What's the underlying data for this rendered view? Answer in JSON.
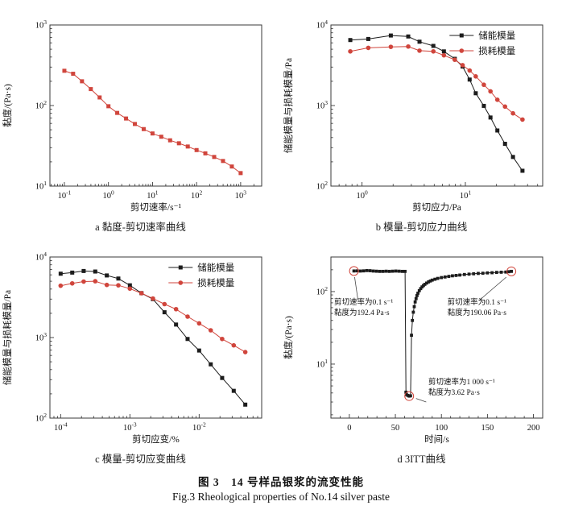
{
  "figure_caption": {
    "cn": "图 3　14 号样品银浆的流变性能",
    "en": "Fig.3 Rheological properties of No.14 silver paste"
  },
  "colors": {
    "red": "#d0453c",
    "black": "#1c1c1c",
    "axis": "#3a3a3a"
  },
  "chart_data": [
    {
      "id": "a",
      "type": "line",
      "caption": "a 黏度-剪切速率曲线",
      "xlabel": "剪切速率/s⁻¹",
      "ylabel": "黏度/(Pa·s)",
      "xscale": "log",
      "yscale": "log",
      "xlim": [
        0.047,
        3000
      ],
      "ylim": [
        10,
        1000
      ],
      "xticks": [
        0.1,
        1,
        10,
        100,
        1000
      ],
      "yticks": [
        10,
        100,
        1000
      ],
      "grid": false,
      "series": [
        {
          "name": "",
          "color": "red",
          "marker": "square",
          "x": [
            0.1,
            0.158,
            0.251,
            0.398,
            0.631,
            1,
            1.58,
            2.51,
            3.98,
            6.31,
            10,
            15.8,
            25.1,
            39.8,
            63.1,
            100,
            158,
            251,
            398,
            631,
            1000
          ],
          "y": [
            270,
            248,
            200,
            160,
            126,
            98,
            81,
            69,
            59,
            51,
            45,
            41,
            37,
            34,
            31,
            28,
            25.5,
            23,
            20.5,
            17.5,
            14.5
          ]
        }
      ]
    },
    {
      "id": "b",
      "type": "line",
      "caption": "b 模量-剪切应力曲线",
      "xlabel": "剪切应力/Pa",
      "ylabel": "储能模量与损耗模量/Pa",
      "xscale": "log",
      "yscale": "log",
      "xlim": [
        0.5,
        56
      ],
      "ylim": [
        100,
        10000
      ],
      "xticks": [
        1,
        10
      ],
      "yticks": [
        100,
        1000,
        10000
      ],
      "grid": false,
      "legend_position": "top-right",
      "series": [
        {
          "name": "储能模量",
          "color": "black",
          "marker": "square",
          "x": [
            0.77,
            1.15,
            1.9,
            2.8,
            3.6,
            4.9,
            6.2,
            7.9,
            9.4,
            11,
            12.6,
            15.1,
            17.5,
            20.4,
            24.2,
            28.9,
            35.7
          ],
          "y": [
            6500,
            6700,
            7400,
            7200,
            6200,
            5500,
            4700,
            3800,
            3050,
            2100,
            1420,
            990,
            710,
            490,
            335,
            230,
            155
          ]
        },
        {
          "name": "损耗模量",
          "color": "red",
          "marker": "circle",
          "x": [
            0.77,
            1.15,
            1.9,
            2.8,
            3.6,
            4.9,
            6.2,
            7.9,
            9.4,
            11,
            12.6,
            15.1,
            17.5,
            20.4,
            24.2,
            28.9,
            35.7
          ],
          "y": [
            4700,
            5200,
            5350,
            5400,
            4800,
            4700,
            4200,
            3700,
            3170,
            2720,
            2300,
            1810,
            1500,
            1180,
            970,
            800,
            670
          ]
        }
      ]
    },
    {
      "id": "c",
      "type": "line",
      "caption": "c 模量-剪切应变曲线",
      "xlabel": "剪切应变/%",
      "ylabel": "储能模量与损耗模量/Pa",
      "xscale": "log",
      "yscale": "log",
      "xlim": [
        7e-05,
        0.08
      ],
      "ylim": [
        100,
        10000
      ],
      "xticks": [
        0.0001,
        0.001,
        0.01
      ],
      "yticks": [
        100,
        1000,
        10000
      ],
      "grid": false,
      "legend_position": "top-right",
      "series": [
        {
          "name": "储能模量",
          "color": "black",
          "marker": "square",
          "x": [
            0.0001,
            0.000147,
            0.000215,
            0.000316,
            0.000464,
            0.000681,
            0.001,
            0.00147,
            0.00215,
            0.00316,
            0.00464,
            0.00681,
            0.01,
            0.0147,
            0.0215,
            0.0316,
            0.0464
          ],
          "y": [
            6200,
            6400,
            6700,
            6600,
            5900,
            5400,
            4450,
            3560,
            3000,
            2060,
            1450,
            960,
            690,
            465,
            315,
            218,
            147
          ]
        },
        {
          "name": "损耗模量",
          "color": "red",
          "marker": "circle",
          "x": [
            0.0001,
            0.000147,
            0.000215,
            0.000316,
            0.000464,
            0.000681,
            0.001,
            0.00147,
            0.00215,
            0.00316,
            0.00464,
            0.00681,
            0.01,
            0.0147,
            0.0215,
            0.0316,
            0.0464
          ],
          "y": [
            4400,
            4700,
            4950,
            5000,
            4500,
            4450,
            4050,
            3550,
            3050,
            2600,
            2250,
            1820,
            1500,
            1230,
            960,
            800,
            660
          ]
        }
      ]
    },
    {
      "id": "d",
      "type": "line",
      "caption": "d 3ITT曲线",
      "xlabel": "时间/s",
      "ylabel": "黏度/(Pa·s)",
      "xscale": "linear",
      "yscale": "log",
      "xlim": [
        -20,
        210
      ],
      "ylim": [
        1.8,
        300
      ],
      "xticks": [
        0,
        50,
        100,
        150,
        200
      ],
      "xminor": 10,
      "yticks": [
        10,
        100
      ],
      "grid": false,
      "series": [
        {
          "name": "",
          "color": "black",
          "marker": "square",
          "msize": 3.8,
          "x": [
            5,
            8.5,
            12,
            15.5,
            19,
            22.5,
            26,
            29.5,
            33,
            36.5,
            40,
            43.5,
            47,
            50.5,
            54,
            57.5,
            60.5,
            61.5,
            62,
            63.5,
            65,
            66.5,
            67.5,
            68.5,
            69.5,
            70.5,
            71.5,
            72.5,
            73.5,
            74.5,
            76,
            77.5,
            79,
            80.5,
            82,
            84,
            86,
            88,
            90,
            93,
            96,
            100,
            104,
            108,
            112,
            116,
            120,
            125,
            130,
            135,
            140,
            145,
            150,
            155,
            160,
            165,
            170,
            173,
            176
          ],
          "y": [
            192.4,
            193,
            192,
            193,
            195,
            194,
            192,
            191,
            190,
            190,
            191,
            190,
            191,
            192,
            191,
            190,
            190,
            4.1,
            3.8,
            3.7,
            3.62,
            3.65,
            25,
            40,
            52,
            62,
            72,
            80,
            88,
            95,
            103,
            110,
            116,
            121,
            126,
            131,
            136,
            140,
            144,
            148,
            152,
            156,
            159,
            162,
            165,
            167,
            169,
            172,
            174,
            176,
            178,
            179,
            181,
            182,
            184,
            185,
            186,
            188,
            190.06
          ]
        }
      ],
      "annotations": [
        {
          "lines": [
            "剪切速率为0.1 s⁻¹",
            "黏度为192.4 Pa·s"
          ],
          "tx": 0.015,
          "ty": 0.295,
          "point": [
            5,
            192.4
          ],
          "leader": [
            0.112,
            0.125,
            0.128,
            0.27
          ]
        },
        {
          "lines": [
            "剪切速率为0.1 s⁻¹",
            "黏度为190.06 Pa·s"
          ],
          "tx": 0.55,
          "ty": 0.295,
          "point": [
            176,
            190.06
          ],
          "leader": [
            0.7,
            0.27,
            0.828,
            0.125
          ]
        },
        {
          "lines": [
            "剪切速率为1 000 s⁻¹",
            "黏度为3.62 Pa·s"
          ],
          "tx": 0.46,
          "ty": 0.79,
          "point": [
            65,
            3.62
          ],
          "leader": [
            0.45,
            0.9,
            0.402,
            0.878
          ]
        }
      ]
    }
  ]
}
